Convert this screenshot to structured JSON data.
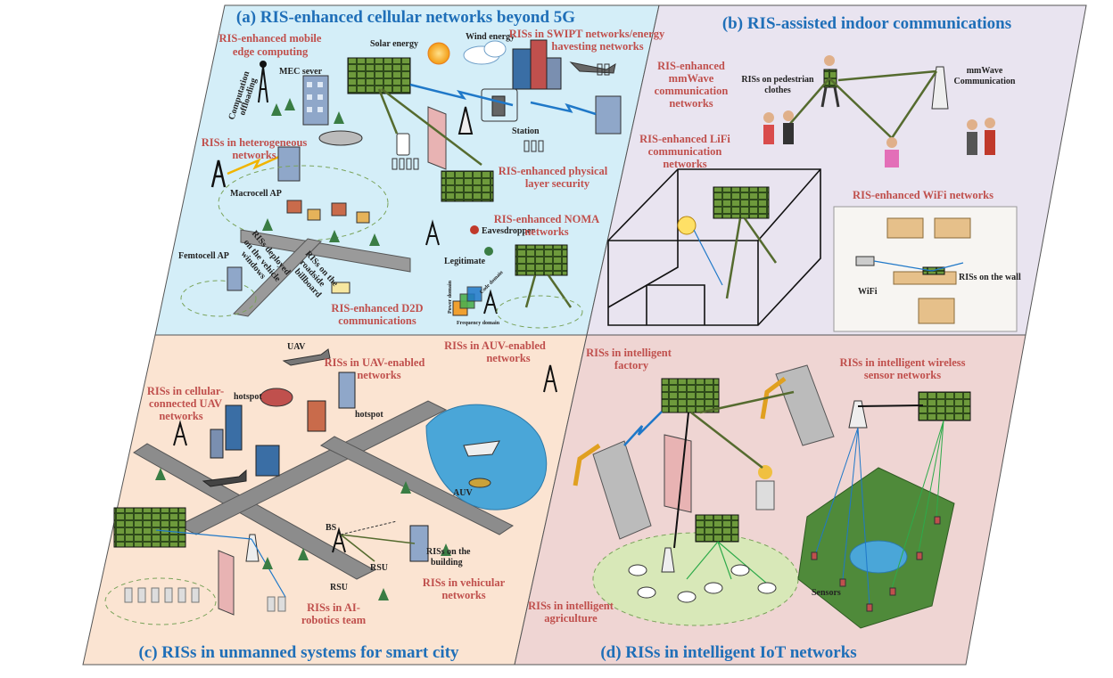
{
  "colors": {
    "panel_a": "#d4eef8",
    "panel_b": "#e9e4f0",
    "panel_c": "#fbe4d2",
    "panel_d": "#efd5d3",
    "title_blue": "#1f6fb8",
    "label_red": "#c0504d",
    "ris_green": "#6e9a3c"
  },
  "panels": {
    "a": {
      "title": "(a) RIS-enhanced cellular networks beyond 5G",
      "labels": {
        "mec_title_1": "RIS-enhanced mobile",
        "mec_title_2": "edge computing",
        "mec_server": "MEC sever",
        "computation_1": "Computation",
        "computation_2": "offloading",
        "solar": "Solar energy",
        "wind": "Wind energy",
        "swipt_1": "RISs in SWIPT networks/energy",
        "swipt_2": "havesting networks",
        "station": "Station",
        "hetero_1": "RISs in heterogeneous",
        "hetero_2": "networks",
        "macrocell": "Macrocell AP",
        "femtocell": "Femtocell AP",
        "vehicle_1": "RISs deployed",
        "vehicle_2": "on the vehicle",
        "vehicle_3": "windows",
        "roadside_1": "RISs on the",
        "roadside_2": "roadside",
        "roadside_3": "billboard",
        "phy_1": "RIS-enhanced physical",
        "phy_2": "layer security",
        "eaves": "Eavesdropper",
        "legit": "Legitimate",
        "noma_1": "RIS-enhanced NOMA",
        "noma_2": "networks",
        "power": "Power domain",
        "code": "Code domain",
        "freq": "Frequency domain",
        "d2d_1": "RIS-enhanced D2D",
        "d2d_2": "communications"
      }
    },
    "b": {
      "title": "(b) RIS-assisted indoor communications",
      "labels": {
        "mmwave_1": "RIS-enhanced",
        "mmwave_2": "mmWave",
        "mmwave_3": "communication",
        "mmwave_4": "networks",
        "ped_1": "RISs on pedestrian",
        "ped_2": "clothes",
        "mmcomm_1": "mmWave",
        "mmcomm_2": "Communication",
        "lifi_1": "RIS-enhanced LiFi",
        "lifi_2": "communication",
        "lifi_3": "networks",
        "wifi_title": "RIS-enhanced WiFi networks",
        "wifi": "WiFi",
        "wall": "RISs on the wall"
      }
    },
    "c": {
      "title": "(c) RISs in unmanned systems for smart city",
      "labels": {
        "uav": "UAV",
        "uav_net_1": "RISs in UAV-enabled",
        "uav_net_2": "networks",
        "cellular_1": "RISs in cellular-",
        "cellular_2": "connected UAV",
        "cellular_3": "networks",
        "hotspot_1": "hotspot",
        "hotspot_2": "hotspot",
        "auv_net_1": "RISs in AUV-enabled",
        "auv_net_2": "networks",
        "auv": "AUV",
        "bs": "BS",
        "rsu_1": "RSU",
        "rsu_2": "RSU",
        "building_1": "RISs on the",
        "building_2": "building",
        "vehicular_1": "RISs in vehicular",
        "vehicular_2": "networks",
        "robot_1": "RISs in AI-",
        "robot_2": "robotics team"
      }
    },
    "d": {
      "title": "(d) RISs in intelligent IoT networks",
      "labels": {
        "factory_1": "RISs in intelligent",
        "factory_2": "factory",
        "wsn_1": "RISs in intelligent wireless",
        "wsn_2": "sensor networks",
        "sensors": "Sensors",
        "agri_1": "RISs in intelligent",
        "agri_2": "agriculture"
      }
    }
  }
}
